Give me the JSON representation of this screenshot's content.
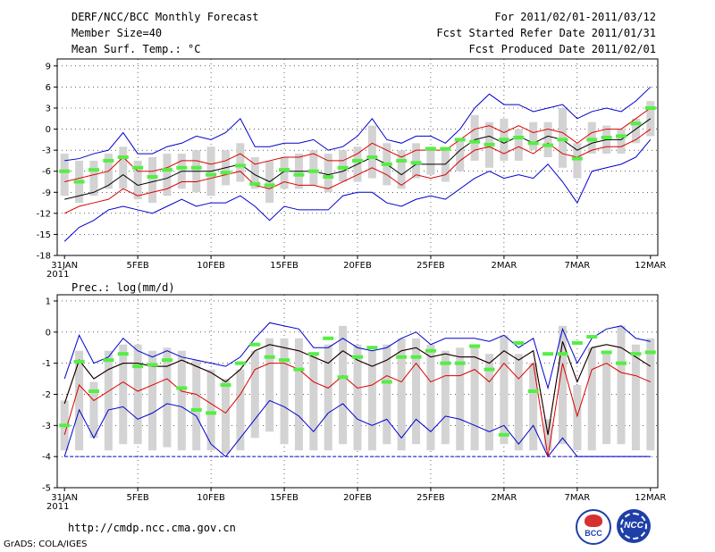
{
  "header": {
    "title": "DERF/NCC/BCC Monthly Forecast",
    "member": "Member Size=40",
    "variable": "Mean Surf. Temp.: °C",
    "period": "For 2011/02/01-2011/03/12",
    "started": "Fcst Started Refer Date 2011/01/31",
    "produced": "Fcst Produced Date 2011/02/01"
  },
  "footer": {
    "url": "http://cmdp.ncc.cma.gov.cn",
    "grads": "GrADS: COLA/IGES",
    "logo_left_text": "BCC",
    "logo_right_text": "NCC"
  },
  "colors": {
    "max_min": "#0000cc",
    "spread": "#dd0000",
    "mean": "#000000",
    "box": "#d3d3d3",
    "obs": "#55ee44",
    "grid": "#000000"
  },
  "chart_data": [
    {
      "type": "box-plume",
      "title": "Mean Surf. Temp.: °C",
      "ylim": [
        -18,
        10
      ],
      "yticks": [
        9,
        6,
        3,
        0,
        -3,
        -6,
        -9,
        -12,
        -15,
        -18
      ],
      "xlabels": [
        "31JAN",
        "5FEB",
        "10FEB",
        "15FEB",
        "20FEB",
        "25FEB",
        "2MAR",
        "7MAR",
        "12MAR"
      ],
      "xlabel_year": "2011",
      "days": 41,
      "series": [
        {
          "name": "max",
          "values": [
            -4.5,
            -4.2,
            -3.5,
            -3.0,
            -0.5,
            -3.5,
            -3.5,
            -2.5,
            -2.0,
            -1.0,
            -1.5,
            -0.5,
            1.5,
            -2.5,
            -2.5,
            -2.0,
            -2.0,
            -1.5,
            -3.0,
            -2.5,
            -1.0,
            1.5,
            -1.5,
            -2.0,
            -1.0,
            -1.0,
            -2.0,
            0.0,
            3.0,
            5.0,
            3.5,
            3.5,
            2.5,
            3.0,
            3.5,
            1.5,
            2.5,
            3.0,
            2.5,
            4.0,
            6.0
          ]
        },
        {
          "name": "upper",
          "values": [
            -7.5,
            -7.0,
            -6.5,
            -6.0,
            -4.0,
            -6.0,
            -6.0,
            -5.5,
            -4.5,
            -4.5,
            -5.0,
            -4.5,
            -3.5,
            -5.0,
            -4.5,
            -4.0,
            -4.0,
            -3.5,
            -4.5,
            -4.5,
            -3.5,
            -2.0,
            -3.0,
            -4.0,
            -3.0,
            -3.0,
            -3.0,
            -1.5,
            0.0,
            0.5,
            -0.5,
            0.5,
            -0.5,
            0.0,
            -0.5,
            -2.0,
            -0.5,
            0.0,
            0.0,
            1.5,
            3.0
          ]
        },
        {
          "name": "mean",
          "values": [
            -10.0,
            -9.5,
            -9.0,
            -8.0,
            -6.5,
            -8.0,
            -7.5,
            -7.0,
            -6.0,
            -6.0,
            -6.0,
            -5.5,
            -5.0,
            -6.5,
            -7.5,
            -6.0,
            -6.0,
            -6.0,
            -6.5,
            -6.0,
            -5.0,
            -4.0,
            -5.0,
            -6.5,
            -5.0,
            -5.0,
            -5.0,
            -3.0,
            -1.5,
            -1.0,
            -2.0,
            -1.0,
            -2.0,
            -1.0,
            -1.5,
            -3.0,
            -2.0,
            -1.5,
            -1.5,
            0.0,
            1.5
          ]
        },
        {
          "name": "lower",
          "values": [
            -12.0,
            -11.0,
            -10.5,
            -10.0,
            -8.5,
            -9.5,
            -9.0,
            -8.5,
            -7.5,
            -7.5,
            -7.0,
            -6.5,
            -6.0,
            -8.0,
            -8.5,
            -7.5,
            -8.0,
            -8.0,
            -8.5,
            -7.5,
            -6.5,
            -5.5,
            -6.5,
            -8.0,
            -6.5,
            -7.0,
            -6.5,
            -4.5,
            -3.0,
            -2.5,
            -3.5,
            -2.5,
            -3.5,
            -2.0,
            -3.5,
            -4.0,
            -3.0,
            -2.5,
            -2.5,
            -1.5,
            0.0
          ]
        },
        {
          "name": "min",
          "values": [
            -16.0,
            -14.0,
            -13.0,
            -11.5,
            -11.0,
            -11.5,
            -12.0,
            -11.0,
            -10.0,
            -11.0,
            -10.5,
            -10.5,
            -9.5,
            -11.0,
            -13.0,
            -11.0,
            -11.5,
            -11.5,
            -11.5,
            -9.5,
            -9.0,
            -9.0,
            -10.5,
            -11.0,
            -10.0,
            -9.5,
            -10.0,
            -8.5,
            -7.0,
            -6.0,
            -7.0,
            -6.5,
            -7.0,
            -5.0,
            -7.5,
            -10.5,
            -6.0,
            -5.5,
            -5.0,
            -4.0,
            -1.5
          ]
        },
        {
          "name": "box_top",
          "values": [
            -3.5,
            -4.5,
            -4.5,
            -3.5,
            -2.5,
            -4.5,
            -4.0,
            -3.5,
            -3.5,
            -3.0,
            -2.5,
            -3.0,
            -2.0,
            -4.0,
            -4.5,
            -4.0,
            -3.5,
            -3.0,
            -3.5,
            -3.0,
            -2.5,
            0.5,
            -2.0,
            -3.0,
            -2.0,
            -2.5,
            -3.0,
            -1.5,
            2.0,
            1.0,
            1.5,
            0.0,
            1.0,
            1.0,
            3.0,
            -2.0,
            1.0,
            0.5,
            0.0,
            1.5,
            4.0
          ]
        },
        {
          "name": "box_bottom",
          "values": [
            -9.5,
            -10.5,
            -9.5,
            -8.5,
            -8.5,
            -10.0,
            -10.5,
            -9.5,
            -8.5,
            -9.0,
            -9.5,
            -8.0,
            -7.5,
            -8.5,
            -10.5,
            -8.5,
            -8.5,
            -8.0,
            -9.0,
            -7.5,
            -7.5,
            -7.0,
            -8.0,
            -8.5,
            -7.0,
            -6.5,
            -7.5,
            -6.0,
            -4.5,
            -5.5,
            -4.5,
            -4.5,
            -3.0,
            -4.0,
            -5.5,
            -7.0,
            -3.5,
            -3.5,
            -3.5,
            -2.0,
            -1.0
          ]
        },
        {
          "name": "observed",
          "values": [
            -6.0,
            -7.5,
            -5.8,
            -4.5,
            -4.0,
            -5.5,
            -6.8,
            -5.8,
            -5.5,
            -5.5,
            -6.5,
            -6.2,
            -5.2,
            -7.8,
            -8.0,
            -5.8,
            -6.5,
            -6.0,
            -6.8,
            -5.5,
            -4.5,
            -4.0,
            -5.0,
            -4.5,
            -4.8,
            -2.8,
            -2.8,
            -1.5,
            -1.8,
            -2.2,
            -1.5,
            -1.2,
            -2.0,
            -2.3,
            -1.5,
            -4.2,
            -1.5,
            -1.2,
            -1.0,
            0.8,
            3.0
          ]
        }
      ]
    },
    {
      "type": "box-plume",
      "title": "Prec.: log(mm/d)",
      "ylim": [
        -5,
        1.2
      ],
      "yticks": [
        1,
        0,
        -1,
        -2,
        -3,
        -4,
        -5
      ],
      "xlabels": [
        "31JAN",
        "5FEB",
        "10FEB",
        "15FEB",
        "20FEB",
        "25FEB",
        "2MAR",
        "7MAR",
        "12MAR"
      ],
      "xlabel_year": "2011",
      "days": 41,
      "series": [
        {
          "name": "max",
          "values": [
            -1.5,
            -0.1,
            -1.0,
            -0.8,
            -0.2,
            -0.6,
            -0.8,
            -0.6,
            -0.8,
            -0.9,
            -1.0,
            -1.1,
            -0.8,
            -0.2,
            0.3,
            0.2,
            0.1,
            -0.5,
            -0.5,
            -0.2,
            -0.5,
            -0.6,
            -0.5,
            -0.2,
            0.0,
            -0.4,
            -0.2,
            -0.2,
            -0.2,
            -0.3,
            -0.1,
            -0.5,
            -0.2,
            -1.8,
            0.1,
            -1.0,
            -0.2,
            0.1,
            0.2,
            -0.2,
            -0.3
          ]
        },
        {
          "name": "upper",
          "values": [
            -2.3,
            -0.9,
            -1.5,
            -1.2,
            -1.0,
            -1.0,
            -1.1,
            -1.1,
            -0.9,
            -1.1,
            -1.3,
            -1.6,
            -1.2,
            -0.6,
            -0.4,
            -0.5,
            -0.6,
            -0.8,
            -1.0,
            -0.6,
            -0.9,
            -1.1,
            -0.9,
            -0.6,
            -0.5,
            -0.8,
            -0.7,
            -0.8,
            -0.8,
            -1.0,
            -0.6,
            -0.9,
            -0.6,
            -3.3,
            -0.3,
            -1.6,
            -0.5,
            -0.4,
            -0.5,
            -0.8,
            -1.1
          ]
        },
        {
          "name": "mean",
          "values": [
            -2.3,
            -0.9,
            -1.5,
            -1.2,
            -1.0,
            -1.0,
            -1.1,
            -1.1,
            -0.9,
            -1.1,
            -1.3,
            -1.6,
            -1.2,
            -0.6,
            -0.4,
            -0.5,
            -0.6,
            -0.8,
            -1.0,
            -0.6,
            -0.9,
            -1.1,
            -0.9,
            -0.6,
            -0.5,
            -0.8,
            -0.7,
            -0.8,
            -0.8,
            -1.0,
            -0.6,
            -0.9,
            -0.6,
            -3.3,
            -0.3,
            -1.6,
            -0.5,
            -0.4,
            -0.5,
            -0.8,
            -1.1
          ]
        },
        {
          "name": "lower",
          "values": [
            -3.3,
            -1.7,
            -2.2,
            -1.9,
            -1.6,
            -1.9,
            -1.7,
            -1.5,
            -1.9,
            -2.0,
            -2.3,
            -2.6,
            -2.0,
            -1.2,
            -1.0,
            -1.0,
            -1.2,
            -1.6,
            -1.8,
            -1.4,
            -1.8,
            -1.7,
            -1.4,
            -1.6,
            -1.0,
            -1.6,
            -1.4,
            -1.4,
            -1.2,
            -1.6,
            -1.0,
            -1.5,
            -1.0,
            -4.0,
            -1.0,
            -2.7,
            -1.2,
            -1.0,
            -1.3,
            -1.4,
            -1.6
          ]
        },
        {
          "name": "min",
          "values": [
            -4.0,
            -2.5,
            -3.4,
            -2.5,
            -2.4,
            -2.8,
            -2.6,
            -2.3,
            -2.4,
            -2.7,
            -3.6,
            -4.0,
            -3.4,
            -2.8,
            -2.2,
            -2.4,
            -2.7,
            -3.2,
            -2.6,
            -2.3,
            -2.8,
            -3.0,
            -2.8,
            -3.4,
            -2.8,
            -3.2,
            -2.7,
            -2.8,
            -3.0,
            -3.2,
            -3.0,
            -3.6,
            -3.0,
            -4.0,
            -3.4,
            -4.0,
            -4.0,
            -4.0,
            -4.0,
            -4.0,
            -4.0
          ]
        },
        {
          "name": "floor",
          "values": [
            -4.0,
            -4.0,
            -4.0,
            -4.0,
            -4.0,
            -4.0,
            -4.0,
            -4.0,
            -4.0,
            -4.0,
            -4.0,
            -4.0,
            -4.0,
            -4.0,
            -4.0,
            -4.0,
            -4.0,
            -4.0,
            -4.0,
            -4.0,
            -4.0,
            -4.0,
            -4.0,
            -4.0,
            -4.0,
            -4.0,
            -4.0,
            -4.0,
            -4.0,
            -4.0,
            -4.0,
            -4.0,
            -4.0,
            -4.0,
            -4.0,
            -4.0,
            -4.0,
            -4.0,
            -4.0,
            -4.0,
            -4.0
          ]
        },
        {
          "name": "box_top",
          "values": [
            -2.2,
            -0.6,
            -1.6,
            -0.6,
            -0.4,
            -0.4,
            -0.6,
            -0.5,
            -0.6,
            -0.9,
            -1.2,
            -1.5,
            -1.2,
            -0.6,
            -0.2,
            -0.2,
            -0.2,
            -0.7,
            -0.4,
            0.2,
            -0.4,
            -0.6,
            -0.4,
            -0.2,
            -0.2,
            -0.4,
            -0.6,
            -0.5,
            -0.5,
            -0.7,
            -0.1,
            -0.7,
            -1.0,
            -2.8,
            0.2,
            -1.7,
            -0.5,
            -0.6,
            0.2,
            -0.4,
            -0.2
          ]
        },
        {
          "name": "box_bottom",
          "values": [
            -3.8,
            -3.8,
            -3.4,
            -3.8,
            -3.6,
            -3.6,
            -3.8,
            -3.7,
            -3.8,
            -3.8,
            -3.8,
            -3.9,
            -3.8,
            -3.4,
            -3.2,
            -3.6,
            -3.8,
            -3.8,
            -3.8,
            -3.6,
            -3.8,
            -3.8,
            -3.6,
            -3.8,
            -3.6,
            -3.8,
            -3.6,
            -3.8,
            -3.8,
            -3.8,
            -3.6,
            -3.8,
            -3.8,
            -3.8,
            -3.6,
            -3.8,
            -3.8,
            -3.6,
            -3.6,
            -3.8,
            -3.8
          ]
        },
        {
          "name": "observed",
          "values": [
            -3.0,
            -0.95,
            -1.9,
            -0.9,
            -0.7,
            -1.1,
            -1.05,
            -0.9,
            -1.8,
            -2.5,
            -2.6,
            -1.7,
            -1.0,
            -0.4,
            -0.8,
            -0.9,
            -1.2,
            -0.7,
            -0.2,
            -1.45,
            -0.8,
            -0.5,
            -1.6,
            -0.8,
            -0.8,
            -0.6,
            -1.0,
            -1.0,
            -0.45,
            -1.2,
            -3.3,
            -0.35,
            -1.9,
            -0.7,
            -0.7,
            -0.35,
            -0.15,
            -0.65,
            -1.0,
            -0.7,
            -0.65
          ]
        }
      ]
    }
  ]
}
